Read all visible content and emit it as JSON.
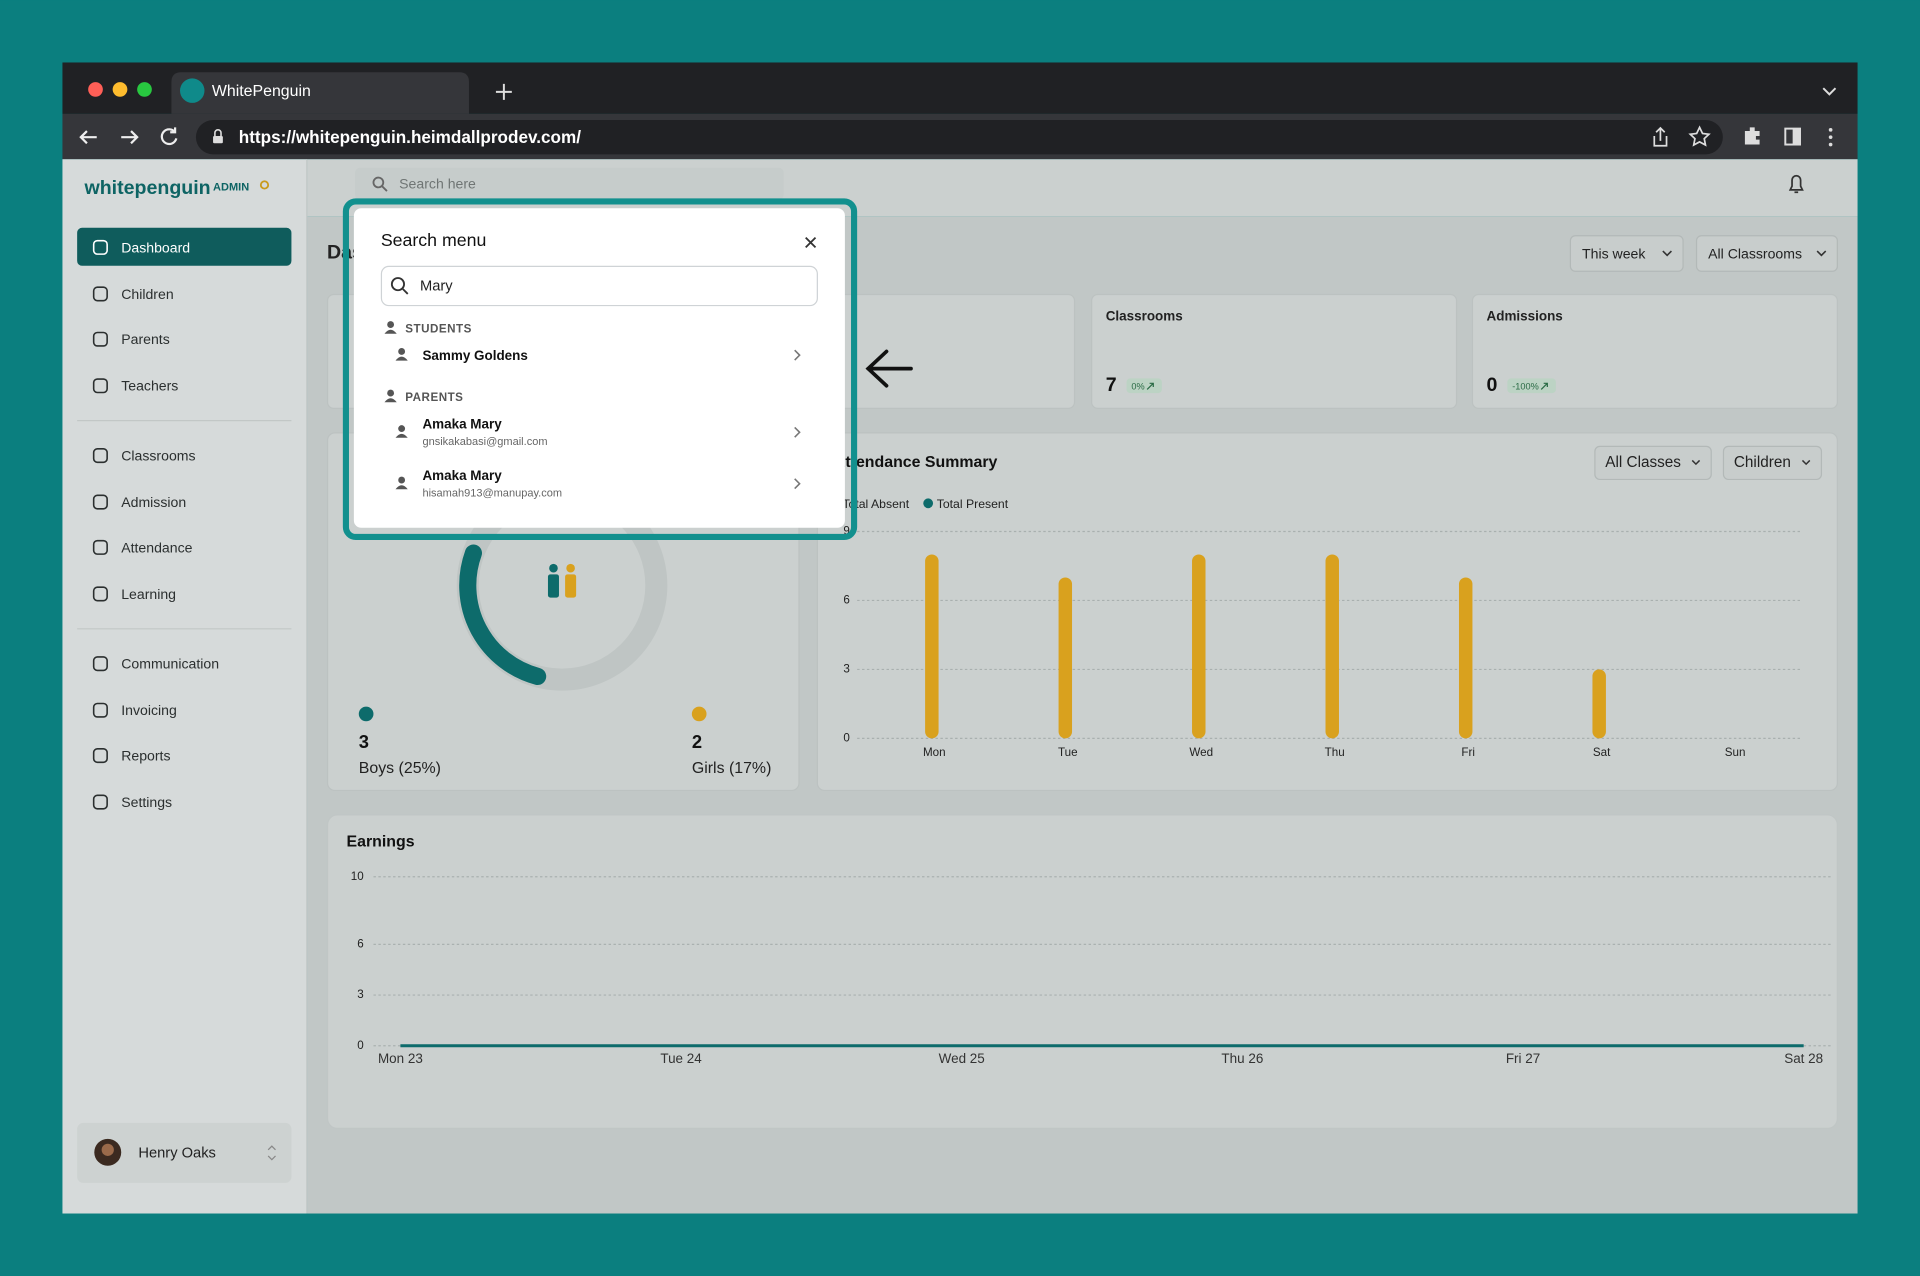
{
  "browser": {
    "tab_title": "WhitePenguin",
    "url": "https://whitepenguin.heimdallprodev.com/"
  },
  "sidebar": {
    "brand": "whitepenguin",
    "role": "ADMIN",
    "nav": [
      "Dashboard",
      "Children",
      "Parents",
      "Teachers",
      "Classrooms",
      "Admission",
      "Attendance",
      "Learning",
      "Communication",
      "Invoicing",
      "Reports",
      "Settings"
    ],
    "user": "Henry Oaks"
  },
  "topbar": {
    "search_placeholder": "Search here"
  },
  "dashboard": {
    "title": "Dashboard",
    "filters": [
      "This week",
      "All Classrooms"
    ],
    "stats": [
      {
        "label": "Classrooms",
        "value": 7,
        "change": "0%"
      },
      {
        "label": "Admissions",
        "value": 0,
        "change": "-100%"
      }
    ],
    "gender": {
      "boys": {
        "count": 3,
        "label": "Boys (25%)",
        "color": "#0d6b6b"
      },
      "girls": {
        "count": 2,
        "label": "Girls (17%)",
        "color": "#d9a11e"
      }
    },
    "attendance": {
      "type": "bar",
      "title": "Attendance Summary",
      "filters": [
        "All Classes",
        "Children"
      ],
      "legend": [
        {
          "label": "Total Absent",
          "color": "#d9a11e"
        },
        {
          "label": "Total Present",
          "color": "#0d6b6b"
        }
      ],
      "categories": [
        "Mon",
        "Tue",
        "Wed",
        "Thu",
        "Fri",
        "Sat",
        "Sun"
      ],
      "values": [
        8,
        7,
        8,
        8,
        7,
        3,
        0
      ],
      "color": "#d9a11e",
      "ylim": [
        0,
        9
      ],
      "yticks": [
        0,
        3,
        6,
        9
      ]
    },
    "earnings": {
      "type": "line",
      "title": "Earnings",
      "categories": [
        "Mon 23",
        "Tue 24",
        "Wed 25",
        "Thu 26",
        "Fri 27",
        "Sat 28"
      ],
      "values": [
        0,
        0,
        0,
        0,
        0,
        0
      ],
      "color": "#0d6b6b",
      "ylim": [
        0,
        10
      ],
      "yticks": [
        0,
        3,
        6,
        10
      ]
    }
  },
  "search_modal": {
    "title": "Search menu",
    "query": "Mary",
    "sections": [
      {
        "heading": "STUDENTS",
        "results": [
          {
            "name": "Sammy Goldens"
          }
        ]
      },
      {
        "heading": "PARENTS",
        "results": [
          {
            "name": "Amaka Mary",
            "email": "gnsikakabasi@gmail.com"
          },
          {
            "name": "Amaka Mary",
            "email": "hisamah913@manupay.com"
          }
        ]
      }
    ]
  }
}
